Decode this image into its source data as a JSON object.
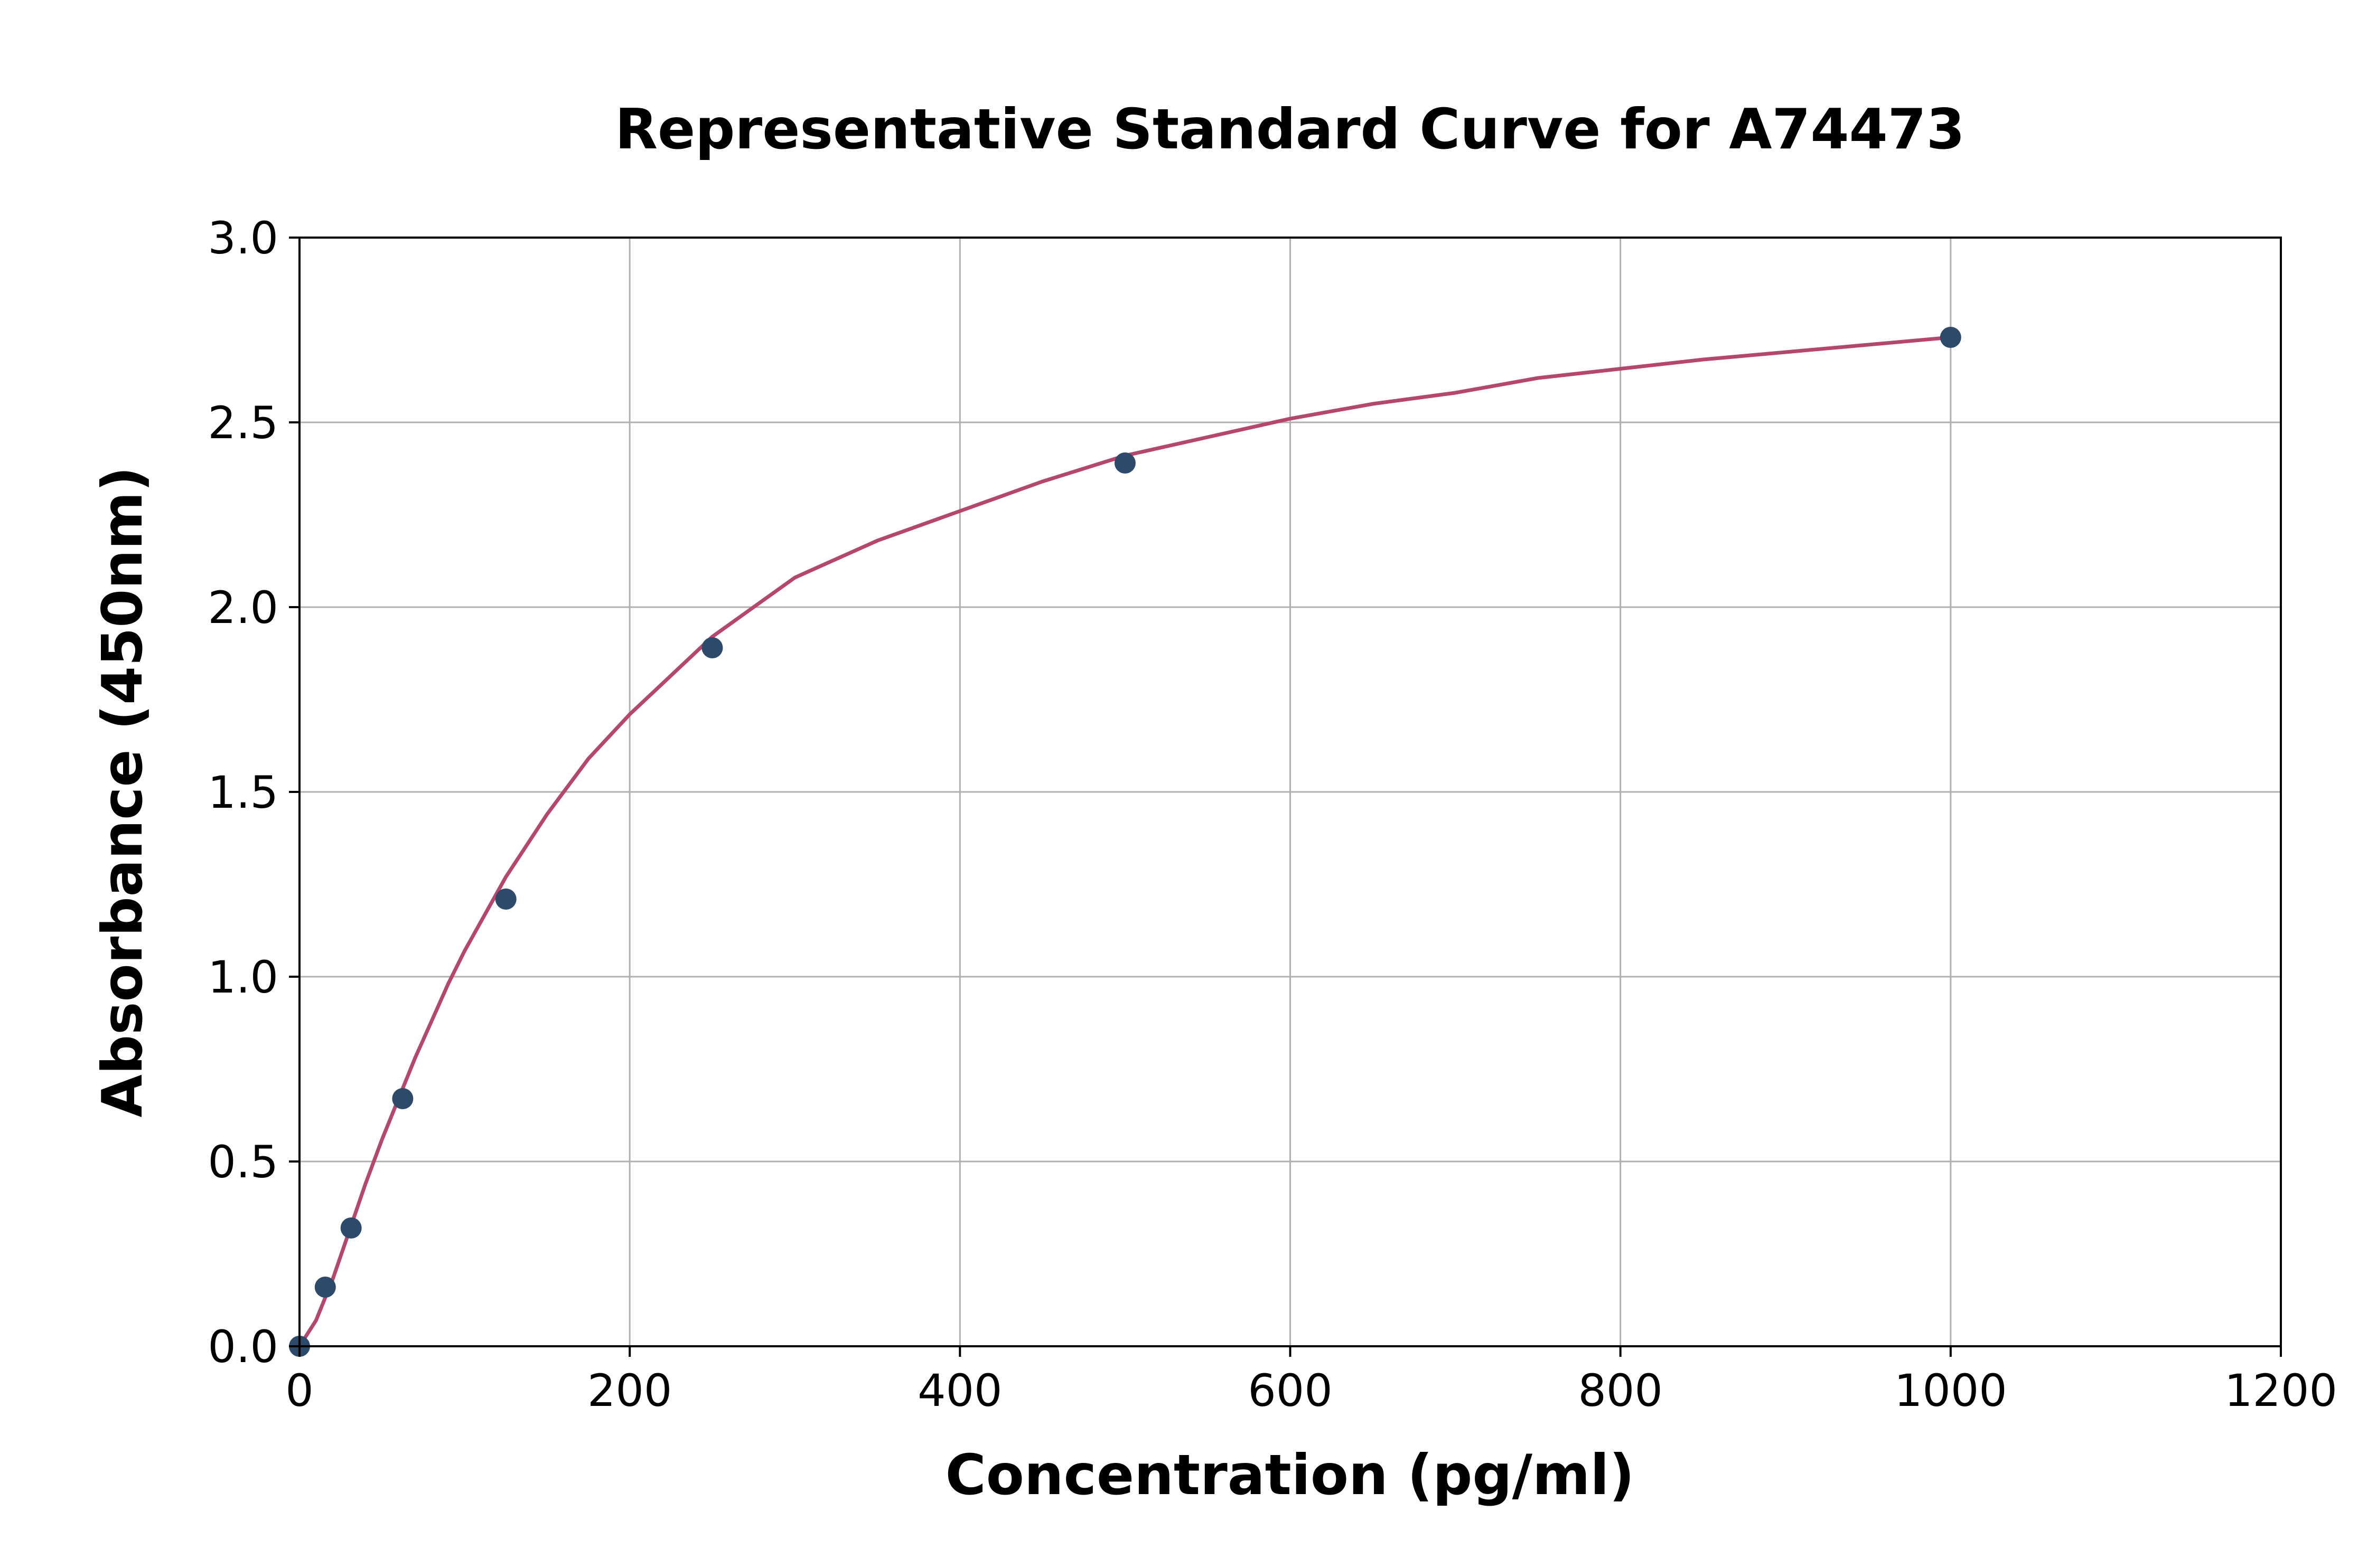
{
  "chart_data": {
    "type": "scatter",
    "title": "Representative Standard Curve for A74473",
    "xlabel": "Concentration (pg/ml)",
    "ylabel": "Absorbance (450nm)",
    "xlim": [
      0,
      1200
    ],
    "ylim": [
      0,
      3.0
    ],
    "xticks": [
      0,
      200,
      400,
      600,
      800,
      1000,
      1200
    ],
    "yticks": [
      0.0,
      0.5,
      1.0,
      1.5,
      2.0,
      2.5,
      3.0
    ],
    "xtick_labels": [
      "0",
      "200",
      "400",
      "600",
      "800",
      "1000",
      "1200"
    ],
    "ytick_labels": [
      "0.0",
      "0.5",
      "1.0",
      "1.5",
      "2.0",
      "2.5",
      "3.0"
    ],
    "grid": true,
    "series": [
      {
        "type": "scatter",
        "x": [
          0,
          15.6,
          31.25,
          62.5,
          125,
          250,
          500,
          1000
        ],
        "y": [
          0.0,
          0.16,
          0.32,
          0.67,
          1.21,
          1.89,
          2.39,
          2.73
        ]
      },
      {
        "type": "line",
        "x": [
          0,
          10,
          20,
          30,
          40,
          50,
          60,
          70,
          80,
          90,
          100,
          125,
          150,
          175,
          200,
          250,
          300,
          350,
          400,
          450,
          500,
          550,
          600,
          650,
          700,
          750,
          800,
          850,
          900,
          950,
          1000
        ],
        "y": [
          0.0,
          0.07,
          0.18,
          0.31,
          0.44,
          0.56,
          0.67,
          0.78,
          0.88,
          0.98,
          1.07,
          1.27,
          1.44,
          1.59,
          1.71,
          1.92,
          2.08,
          2.18,
          2.26,
          2.34,
          2.41,
          2.46,
          2.51,
          2.55,
          2.58,
          2.62,
          2.645,
          2.67,
          2.69,
          2.71,
          2.73
        ]
      }
    ],
    "colors": {
      "points": "#2e4a6b",
      "curve": "#b5476e",
      "grid": "#b0b0b0",
      "axes": "#000000"
    }
  }
}
